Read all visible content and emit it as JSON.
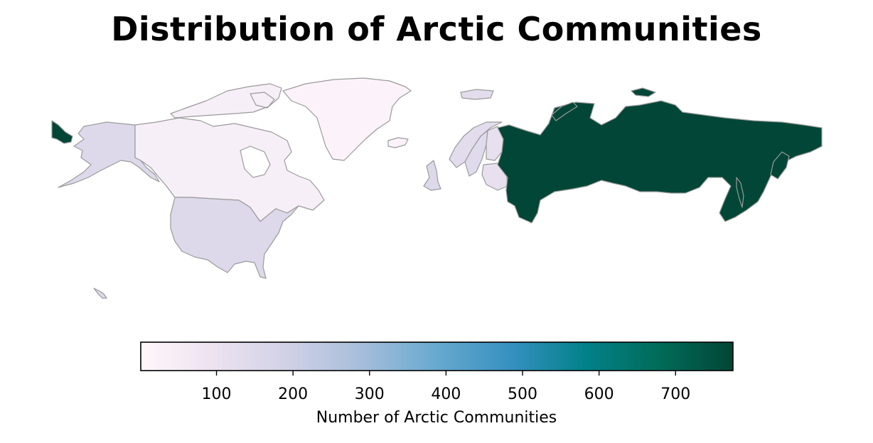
{
  "title": "Distribution of Arctic Communities",
  "chart_data": {
    "type": "choropleth",
    "title": "Distribution of Arctic Communities",
    "regions": [
      {
        "name": "Russia",
        "value": 775
      },
      {
        "name": "United States",
        "value": 150
      },
      {
        "name": "Canada",
        "value": 40
      },
      {
        "name": "Greenland",
        "value": 20
      },
      {
        "name": "Norway",
        "value": 130
      },
      {
        "name": "Sweden",
        "value": 140
      },
      {
        "name": "Finland",
        "value": 110
      },
      {
        "name": "United Kingdom",
        "value": 150
      },
      {
        "name": "Iceland",
        "value": 20
      }
    ],
    "colorbar": {
      "label": "Number of Arctic Communities",
      "range": [
        1,
        775
      ],
      "ticks": [
        100,
        200,
        300,
        400,
        500,
        600,
        700
      ],
      "colormap": "PuBuGn",
      "stops": [
        "#fff7fb",
        "#ece2f0",
        "#d0d1e6",
        "#a6bddb",
        "#67a9cf",
        "#3690c0",
        "#02818a",
        "#016c59",
        "#014636"
      ]
    },
    "border_color": "#9a9a9a"
  }
}
